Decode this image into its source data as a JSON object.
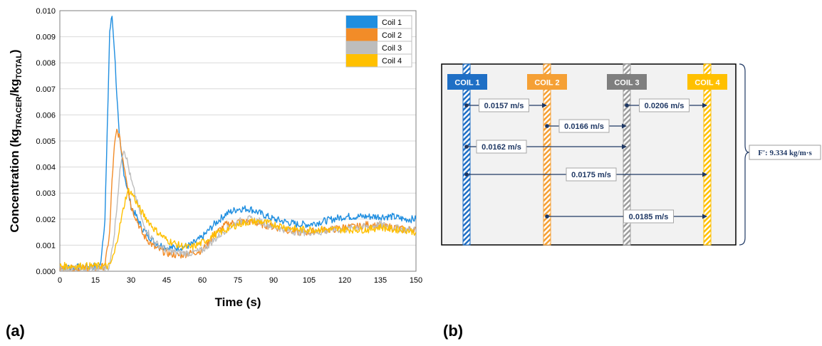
{
  "panels": {
    "a_label": "(a)",
    "b_label": "(b)"
  },
  "chart_data": {
    "type": "line",
    "xlabel": "Time (s)",
    "ylabel_parts": [
      "Concentration (kg",
      "TRACER",
      "/kg",
      "TOTAL",
      ")"
    ],
    "xlim": [
      0,
      150
    ],
    "ylim": [
      0,
      0.01
    ],
    "xticks": [
      0,
      15,
      30,
      45,
      60,
      75,
      90,
      105,
      120,
      135,
      150
    ],
    "yticks": [
      "0.000",
      "0.001",
      "0.002",
      "0.003",
      "0.004",
      "0.005",
      "0.006",
      "0.007",
      "0.008",
      "0.009",
      "0.010"
    ],
    "grid": true,
    "legend_position": "top-right",
    "series": [
      {
        "name": "Coil 1",
        "color": "#1f8ee0",
        "points": [
          [
            0,
            0.00015
          ],
          [
            10,
            0.00015
          ],
          [
            17,
            0.0002
          ],
          [
            19,
            0.002
          ],
          [
            20,
            0.0055
          ],
          [
            21,
            0.0092
          ],
          [
            22,
            0.0098
          ],
          [
            23,
            0.0085
          ],
          [
            24,
            0.0068
          ],
          [
            25,
            0.0052
          ],
          [
            26,
            0.0044
          ],
          [
            27,
            0.0038
          ],
          [
            30,
            0.0025
          ],
          [
            35,
            0.0016
          ],
          [
            40,
            0.0011
          ],
          [
            45,
            0.0009
          ],
          [
            50,
            0.0009
          ],
          [
            55,
            0.001
          ],
          [
            60,
            0.0013
          ],
          [
            65,
            0.0018
          ],
          [
            70,
            0.0022
          ],
          [
            75,
            0.0024
          ],
          [
            80,
            0.0024
          ],
          [
            85,
            0.0022
          ],
          [
            90,
            0.002
          ],
          [
            95,
            0.0019
          ],
          [
            100,
            0.0018
          ],
          [
            105,
            0.0018
          ],
          [
            110,
            0.0019
          ],
          [
            115,
            0.002
          ],
          [
            120,
            0.0021
          ],
          [
            125,
            0.0021
          ],
          [
            130,
            0.0021
          ],
          [
            135,
            0.0021
          ],
          [
            140,
            0.0021
          ],
          [
            145,
            0.002
          ],
          [
            150,
            0.002
          ]
        ]
      },
      {
        "name": "Coil 2",
        "color": "#f28c28",
        "points": [
          [
            0,
            0.0001
          ],
          [
            15,
            0.0001
          ],
          [
            19,
            0.0002
          ],
          [
            21,
            0.0015
          ],
          [
            22,
            0.0035
          ],
          [
            23,
            0.0048
          ],
          [
            24,
            0.0054
          ],
          [
            25,
            0.0052
          ],
          [
            26,
            0.0046
          ],
          [
            28,
            0.0036
          ],
          [
            30,
            0.0025
          ],
          [
            35,
            0.0014
          ],
          [
            40,
            0.0009
          ],
          [
            45,
            0.0007
          ],
          [
            50,
            0.0006
          ],
          [
            55,
            0.0007
          ],
          [
            60,
            0.0008
          ],
          [
            65,
            0.0014
          ],
          [
            70,
            0.0018
          ],
          [
            75,
            0.0019
          ],
          [
            80,
            0.0019
          ],
          [
            85,
            0.0018
          ],
          [
            90,
            0.0017
          ],
          [
            95,
            0.0016
          ],
          [
            100,
            0.0015
          ],
          [
            105,
            0.0015
          ],
          [
            110,
            0.0016
          ],
          [
            115,
            0.0016
          ],
          [
            120,
            0.0017
          ],
          [
            125,
            0.0017
          ],
          [
            130,
            0.0018
          ],
          [
            135,
            0.0017
          ],
          [
            140,
            0.0017
          ],
          [
            145,
            0.0016
          ],
          [
            150,
            0.0016
          ]
        ]
      },
      {
        "name": "Coil 3",
        "color": "#bdbdbd",
        "points": [
          [
            0,
            0.0001
          ],
          [
            18,
            0.0001
          ],
          [
            21,
            0.0002
          ],
          [
            23,
            0.0015
          ],
          [
            25,
            0.0035
          ],
          [
            26,
            0.0044
          ],
          [
            27,
            0.0047
          ],
          [
            28,
            0.0044
          ],
          [
            30,
            0.0035
          ],
          [
            33,
            0.0025
          ],
          [
            35,
            0.0018
          ],
          [
            40,
            0.0011
          ],
          [
            45,
            0.0008
          ],
          [
            50,
            0.0007
          ],
          [
            55,
            0.0007
          ],
          [
            60,
            0.0008
          ],
          [
            65,
            0.0012
          ],
          [
            70,
            0.0016
          ],
          [
            75,
            0.0019
          ],
          [
            80,
            0.002
          ],
          [
            85,
            0.0019
          ],
          [
            90,
            0.0017
          ],
          [
            95,
            0.0016
          ],
          [
            100,
            0.0015
          ],
          [
            105,
            0.0015
          ],
          [
            110,
            0.0015
          ],
          [
            115,
            0.0016
          ],
          [
            120,
            0.0016
          ],
          [
            125,
            0.0017
          ],
          [
            130,
            0.0017
          ],
          [
            135,
            0.0018
          ],
          [
            140,
            0.0017
          ],
          [
            145,
            0.0016
          ],
          [
            150,
            0.0016
          ]
        ]
      },
      {
        "name": "Coil 4",
        "color": "#ffc000",
        "points": [
          [
            0,
            0.0002
          ],
          [
            10,
            0.0002
          ],
          [
            21,
            0.0002
          ],
          [
            23,
            0.0007
          ],
          [
            25,
            0.0016
          ],
          [
            27,
            0.0025
          ],
          [
            28,
            0.0029
          ],
          [
            29,
            0.0031
          ],
          [
            31,
            0.0029
          ],
          [
            33,
            0.0025
          ],
          [
            35,
            0.0022
          ],
          [
            40,
            0.0016
          ],
          [
            45,
            0.0012
          ],
          [
            50,
            0.001
          ],
          [
            55,
            0.0009
          ],
          [
            60,
            0.0011
          ],
          [
            65,
            0.0014
          ],
          [
            70,
            0.0016
          ],
          [
            75,
            0.0018
          ],
          [
            80,
            0.0019
          ],
          [
            85,
            0.0019
          ],
          [
            90,
            0.0018
          ],
          [
            95,
            0.0017
          ],
          [
            100,
            0.0016
          ],
          [
            105,
            0.0016
          ],
          [
            110,
            0.0016
          ],
          [
            115,
            0.0016
          ],
          [
            120,
            0.0016
          ],
          [
            125,
            0.0016
          ],
          [
            130,
            0.0016
          ],
          [
            135,
            0.0017
          ],
          [
            140,
            0.0016
          ],
          [
            145,
            0.0016
          ],
          [
            150,
            0.0015
          ]
        ]
      }
    ]
  },
  "diagram": {
    "coils": [
      {
        "label": "COIL 1",
        "color": "#1f6fc5",
        "stripe": "#1f6fc5"
      },
      {
        "label": "COIL 2",
        "color": "#f5a035",
        "stripe": "#f5a035"
      },
      {
        "label": "COIL 3",
        "color": "#7f7f7f",
        "stripe": "#9e9e9e"
      },
      {
        "label": "COIL 4",
        "color": "#ffc000",
        "stripe": "#ffc000"
      }
    ],
    "velocities": [
      {
        "from": 0,
        "to": 1,
        "row": 0,
        "label": "0.0157 m/s"
      },
      {
        "from": 2,
        "to": 3,
        "row": 0,
        "label": "0.0206 m/s"
      },
      {
        "from": 1,
        "to": 2,
        "row": 1,
        "label": "0.0166 m/s"
      },
      {
        "from": 0,
        "to": 2,
        "row": 2,
        "label": "0.0162 m/s"
      },
      {
        "from": 0,
        "to": 3,
        "row": 3,
        "label": "0.0175 m/s"
      },
      {
        "from": 1,
        "to": 3,
        "row": 4,
        "label": "0.0185 m/s"
      }
    ],
    "flux_label": "F': 9.334 kg/m·s",
    "arrow_color": "#1f3864"
  }
}
